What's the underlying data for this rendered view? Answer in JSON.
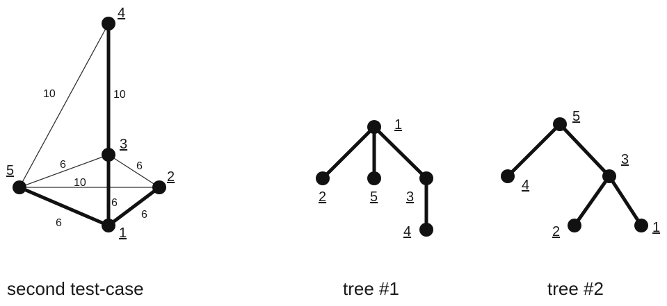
{
  "graph": {
    "caption": "second test-case",
    "node_labels": {
      "n1": "1",
      "n2": "2",
      "n3": "3",
      "n4": "4",
      "n5": "5"
    },
    "weights": {
      "e54": "10",
      "e43": "10",
      "e53": "6",
      "e32": "6",
      "e52": "10",
      "e31": "6",
      "e51": "6",
      "e21": "6"
    }
  },
  "tree1": {
    "caption": "tree #1",
    "node_labels": {
      "n1": "1",
      "n2": "2",
      "n5": "5",
      "n3": "3",
      "n4": "4"
    }
  },
  "tree2": {
    "caption": "tree #2",
    "node_labels": {
      "n5": "5",
      "n4": "4",
      "n3": "3",
      "n2": "2",
      "n1": "1"
    }
  }
}
